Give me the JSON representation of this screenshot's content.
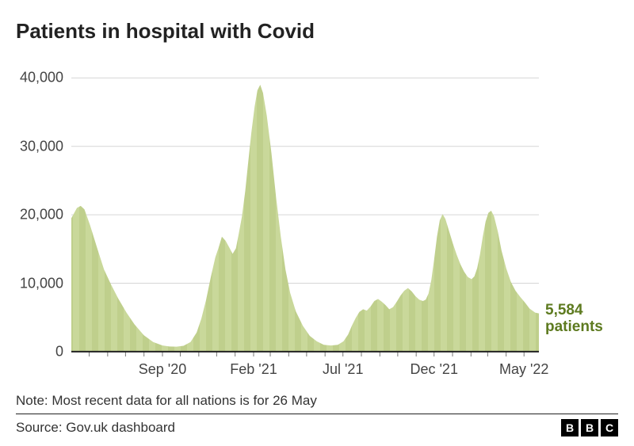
{
  "title": "Patients in hospital with Covid",
  "note": "Note: Most recent data for all nations is for 26 May",
  "source": "Source: Gov.uk dashboard",
  "logo": [
    "B",
    "B",
    "C"
  ],
  "callout": {
    "value": "5,584",
    "unit": "patients",
    "color": "#5d7a1f"
  },
  "chart": {
    "type": "area",
    "background_color": "#ffffff",
    "grid_color": "#d6d6d6",
    "axis_color": "#222222",
    "fill_color": "#c9d89a",
    "fill_opacity": 1.0,
    "stripe_color": "#bfcf8c",
    "tick_color": "#777777",
    "y": {
      "min": 0,
      "max": 42000,
      "ticks": [
        0,
        10000,
        20000,
        30000,
        40000
      ],
      "tick_labels": [
        "0",
        "10,000",
        "20,000",
        "30,000",
        "40,000"
      ],
      "label_fontsize": 18,
      "label_color": "#444444"
    },
    "x": {
      "start": "2020-04-01",
      "end": "2022-05-26",
      "tick_dates": [
        "2020-09-01",
        "2021-02-01",
        "2021-07-01",
        "2021-12-01",
        "2022-05-01"
      ],
      "tick_labels": [
        "Sep '20",
        "Feb '21",
        "Jul '21",
        "Dec '21",
        "May '22"
      ],
      "month_ticks": [
        "2020-05-01",
        "2020-06-01",
        "2020-07-01",
        "2020-08-01",
        "2020-09-01",
        "2020-10-01",
        "2020-11-01",
        "2020-12-01",
        "2021-01-01",
        "2021-02-01",
        "2021-03-01",
        "2021-04-01",
        "2021-05-01",
        "2021-06-01",
        "2021-07-01",
        "2021-08-01",
        "2021-09-01",
        "2021-10-01",
        "2021-11-01",
        "2021-12-01",
        "2022-01-01",
        "2022-02-01",
        "2022-03-01",
        "2022-04-01",
        "2022-05-01"
      ],
      "label_fontsize": 18,
      "label_color": "#444444"
    },
    "series": [
      {
        "t": 0.0,
        "v": 19500
      },
      {
        "t": 0.012,
        "v": 21000
      },
      {
        "t": 0.02,
        "v": 21300
      },
      {
        "t": 0.028,
        "v": 20800
      },
      {
        "t": 0.04,
        "v": 18500
      },
      {
        "t": 0.055,
        "v": 15200
      },
      {
        "t": 0.07,
        "v": 12000
      },
      {
        "t": 0.085,
        "v": 9800
      },
      {
        "t": 0.1,
        "v": 7800
      },
      {
        "t": 0.118,
        "v": 5700
      },
      {
        "t": 0.135,
        "v": 4000
      },
      {
        "t": 0.155,
        "v": 2400
      },
      {
        "t": 0.175,
        "v": 1400
      },
      {
        "t": 0.195,
        "v": 900
      },
      {
        "t": 0.21,
        "v": 750
      },
      {
        "t": 0.225,
        "v": 720
      },
      {
        "t": 0.24,
        "v": 850
      },
      {
        "t": 0.255,
        "v": 1400
      },
      {
        "t": 0.268,
        "v": 2800
      },
      {
        "t": 0.278,
        "v": 4800
      },
      {
        "t": 0.288,
        "v": 7500
      },
      {
        "t": 0.298,
        "v": 10800
      },
      {
        "t": 0.308,
        "v": 13800
      },
      {
        "t": 0.315,
        "v": 15200
      },
      {
        "t": 0.322,
        "v": 16800
      },
      {
        "t": 0.33,
        "v": 16200
      },
      {
        "t": 0.338,
        "v": 15200
      },
      {
        "t": 0.345,
        "v": 14300
      },
      {
        "t": 0.352,
        "v": 15100
      },
      {
        "t": 0.358,
        "v": 17200
      },
      {
        "t": 0.365,
        "v": 19800
      },
      {
        "t": 0.372,
        "v": 23500
      },
      {
        "t": 0.378,
        "v": 27500
      },
      {
        "t": 0.385,
        "v": 32000
      },
      {
        "t": 0.392,
        "v": 35800
      },
      {
        "t": 0.398,
        "v": 38200
      },
      {
        "t": 0.404,
        "v": 39000
      },
      {
        "t": 0.41,
        "v": 37800
      },
      {
        "t": 0.418,
        "v": 34500
      },
      {
        "t": 0.428,
        "v": 29000
      },
      {
        "t": 0.438,
        "v": 22500
      },
      {
        "t": 0.448,
        "v": 16800
      },
      {
        "t": 0.458,
        "v": 12000
      },
      {
        "t": 0.468,
        "v": 8600
      },
      {
        "t": 0.48,
        "v": 5900
      },
      {
        "t": 0.495,
        "v": 3800
      },
      {
        "t": 0.51,
        "v": 2300
      },
      {
        "t": 0.525,
        "v": 1500
      },
      {
        "t": 0.54,
        "v": 1000
      },
      {
        "t": 0.555,
        "v": 900
      },
      {
        "t": 0.57,
        "v": 1000
      },
      {
        "t": 0.582,
        "v": 1500
      },
      {
        "t": 0.592,
        "v": 2500
      },
      {
        "t": 0.6,
        "v": 3800
      },
      {
        "t": 0.608,
        "v": 4900
      },
      {
        "t": 0.616,
        "v": 5800
      },
      {
        "t": 0.624,
        "v": 6200
      },
      {
        "t": 0.632,
        "v": 6000
      },
      {
        "t": 0.64,
        "v": 6600
      },
      {
        "t": 0.648,
        "v": 7400
      },
      {
        "t": 0.656,
        "v": 7700
      },
      {
        "t": 0.664,
        "v": 7300
      },
      {
        "t": 0.672,
        "v": 6800
      },
      {
        "t": 0.68,
        "v": 6200
      },
      {
        "t": 0.688,
        "v": 6500
      },
      {
        "t": 0.696,
        "v": 7300
      },
      {
        "t": 0.704,
        "v": 8200
      },
      {
        "t": 0.712,
        "v": 8900
      },
      {
        "t": 0.72,
        "v": 9300
      },
      {
        "t": 0.728,
        "v": 8800
      },
      {
        "t": 0.736,
        "v": 8100
      },
      {
        "t": 0.744,
        "v": 7600
      },
      {
        "t": 0.752,
        "v": 7400
      },
      {
        "t": 0.758,
        "v": 7600
      },
      {
        "t": 0.764,
        "v": 8500
      },
      {
        "t": 0.77,
        "v": 10500
      },
      {
        "t": 0.776,
        "v": 13500
      },
      {
        "t": 0.782,
        "v": 16800
      },
      {
        "t": 0.788,
        "v": 19200
      },
      {
        "t": 0.794,
        "v": 20100
      },
      {
        "t": 0.8,
        "v": 19400
      },
      {
        "t": 0.808,
        "v": 17600
      },
      {
        "t": 0.816,
        "v": 15800
      },
      {
        "t": 0.824,
        "v": 14200
      },
      {
        "t": 0.832,
        "v": 12800
      },
      {
        "t": 0.84,
        "v": 11700
      },
      {
        "t": 0.848,
        "v": 10900
      },
      {
        "t": 0.856,
        "v": 10600
      },
      {
        "t": 0.862,
        "v": 11000
      },
      {
        "t": 0.868,
        "v": 12200
      },
      {
        "t": 0.874,
        "v": 14200
      },
      {
        "t": 0.88,
        "v": 16800
      },
      {
        "t": 0.886,
        "v": 19000
      },
      {
        "t": 0.892,
        "v": 20300
      },
      {
        "t": 0.898,
        "v": 20600
      },
      {
        "t": 0.904,
        "v": 19800
      },
      {
        "t": 0.912,
        "v": 17600
      },
      {
        "t": 0.92,
        "v": 14800
      },
      {
        "t": 0.93,
        "v": 12200
      },
      {
        "t": 0.94,
        "v": 10200
      },
      {
        "t": 0.95,
        "v": 8900
      },
      {
        "t": 0.96,
        "v": 8000
      },
      {
        "t": 0.97,
        "v": 7200
      },
      {
        "t": 0.98,
        "v": 6300
      },
      {
        "t": 0.992,
        "v": 5700
      },
      {
        "t": 1.0,
        "v": 5584
      }
    ]
  }
}
